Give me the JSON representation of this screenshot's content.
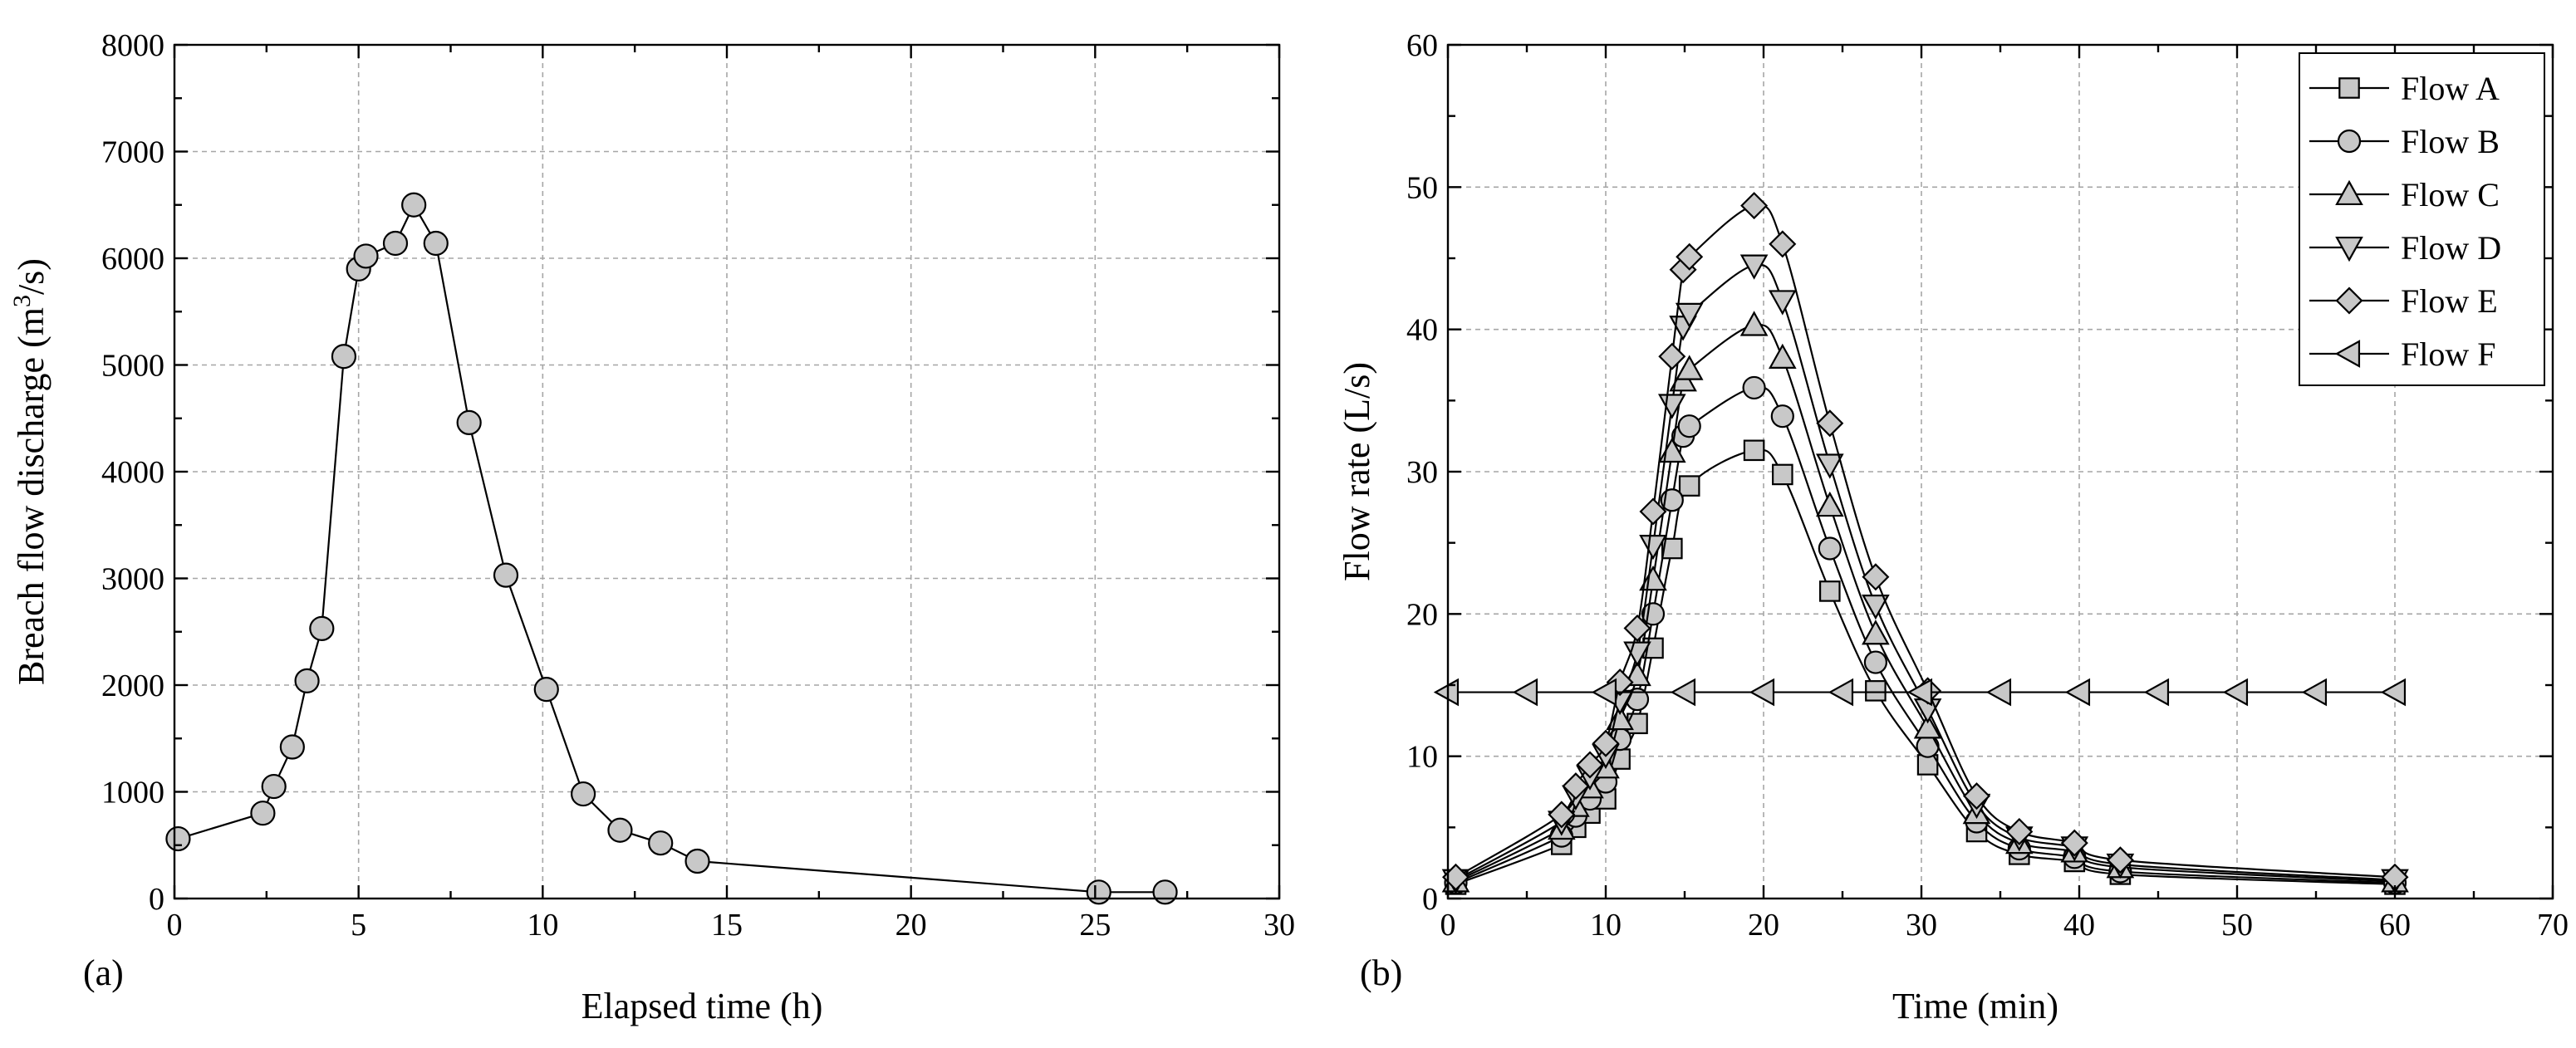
{
  "chart_data": [
    {
      "type": "scatter",
      "panel_label": "(a)",
      "title": "",
      "xlabel": "Elapsed time (h)",
      "ylabel_parts": [
        "Breach flow discharge (m",
        "3",
        "/s)"
      ],
      "xlim": [
        0,
        30
      ],
      "ylim": [
        0,
        8000
      ],
      "xticks": [
        0,
        5,
        10,
        15,
        20,
        25,
        30
      ],
      "xtick_labels": [
        "0",
        "5",
        "10",
        "15",
        "20",
        "25",
        "30"
      ],
      "yticks": [
        0,
        1000,
        2000,
        3000,
        4000,
        5000,
        6000,
        7000,
        8000
      ],
      "ytick_labels": [
        "0",
        "1000",
        "2000",
        "3000",
        "4000",
        "5000",
        "6000",
        "7000",
        "8000"
      ],
      "grid": true,
      "series": [
        {
          "name": "Breach flow discharge",
          "marker": "circle",
          "x": [
            0.1,
            2.4,
            2.7,
            3.2,
            3.6,
            4.0,
            4.6,
            5.0,
            5.2,
            6.0,
            6.5,
            7.1,
            8.0,
            9.0,
            10.1,
            11.1,
            12.1,
            13.2,
            14.2,
            25.1,
            26.9
          ],
          "y": [
            560,
            800,
            1050,
            1420,
            2040,
            2530,
            5080,
            5900,
            6020,
            6140,
            6500,
            6140,
            4460,
            3030,
            1960,
            980,
            640,
            520,
            350,
            60,
            60
          ]
        }
      ]
    },
    {
      "type": "line",
      "panel_label": "(b)",
      "title": "",
      "xlabel": "Time (min)",
      "ylabel": "Flow rate (L/s)",
      "xlim": [
        0,
        70
      ],
      "ylim": [
        0,
        60
      ],
      "xticks": [
        0,
        10,
        20,
        30,
        40,
        50,
        60,
        70
      ],
      "xtick_labels": [
        "0",
        "10",
        "20",
        "30",
        "40",
        "50",
        "60",
        "70"
      ],
      "yticks": [
        0,
        10,
        20,
        30,
        40,
        50,
        60
      ],
      "ytick_labels": [
        "0",
        "10",
        "20",
        "30",
        "40",
        "50",
        "60"
      ],
      "grid": true,
      "legend_position": "top-right",
      "series": [
        {
          "name": "Flow A",
          "marker": "square",
          "peak": 31.5,
          "x": [
            0.5,
            7.2,
            8.1,
            9.0,
            10.0,
            10.9,
            12.0,
            13.0,
            14.2,
            15.3,
            19.4,
            21.2,
            24.2,
            27.1,
            30.4,
            33.5,
            36.2,
            39.7,
            42.6,
            60.0
          ],
          "y": [
            1.0,
            3.8,
            5.0,
            6.0,
            7.0,
            9.8,
            12.3,
            17.6,
            24.6,
            29.0,
            31.5,
            29.8,
            21.6,
            14.6,
            9.4,
            4.7,
            3.1,
            2.6,
            1.7,
            1.0
          ]
        },
        {
          "name": "Flow B",
          "marker": "circle",
          "peak": 35.9,
          "x": [
            0.5,
            7.2,
            8.1,
            9.0,
            10.0,
            10.9,
            12.0,
            13.0,
            14.2,
            14.9,
            15.3,
            19.4,
            21.2,
            24.2,
            27.1,
            30.4,
            33.5,
            36.2,
            39.7,
            42.6,
            60.0
          ],
          "y": [
            1.1,
            4.4,
            5.8,
            7.0,
            8.2,
            11.2,
            14.0,
            20.0,
            28.0,
            32.5,
            33.2,
            35.9,
            33.9,
            24.6,
            16.6,
            10.7,
            5.4,
            3.5,
            2.9,
            1.9,
            1.1
          ]
        },
        {
          "name": "Flow C",
          "marker": "triangle-up",
          "peak": 40.3,
          "x": [
            0.5,
            7.2,
            8.1,
            9.0,
            10.0,
            10.9,
            12.0,
            13.0,
            14.2,
            14.9,
            15.3,
            19.4,
            21.2,
            24.2,
            27.1,
            30.4,
            33.5,
            36.2,
            39.7,
            42.6,
            60.0
          ],
          "y": [
            1.2,
            4.9,
            6.5,
            7.8,
            9.2,
            12.6,
            15.7,
            22.4,
            31.4,
            36.4,
            37.2,
            40.3,
            38.0,
            27.6,
            18.6,
            12.0,
            6.0,
            3.9,
            3.3,
            2.2,
            1.2
          ]
        },
        {
          "name": "Flow D",
          "marker": "triangle-down",
          "peak": 44.5,
          "x": [
            0.5,
            7.2,
            8.1,
            9.0,
            10.0,
            10.9,
            12.0,
            13.0,
            14.2,
            14.9,
            15.3,
            19.4,
            21.2,
            24.2,
            27.1,
            30.4,
            33.5,
            36.2,
            39.7,
            42.6,
            60.0
          ],
          "y": [
            1.3,
            5.4,
            7.2,
            8.6,
            10.1,
            13.9,
            17.3,
            24.8,
            34.7,
            40.2,
            41.1,
            44.5,
            42.0,
            30.5,
            20.6,
            13.3,
            6.6,
            4.3,
            3.6,
            2.4,
            1.3
          ]
        },
        {
          "name": "Flow E",
          "marker": "diamond",
          "peak": 48.7,
          "x": [
            0.5,
            7.2,
            8.1,
            9.0,
            10.0,
            10.9,
            12.0,
            13.0,
            14.2,
            14.9,
            15.3,
            19.4,
            21.2,
            24.2,
            27.1,
            30.4,
            33.5,
            36.2,
            39.7,
            42.6,
            60.0
          ],
          "y": [
            1.5,
            5.9,
            7.9,
            9.4,
            10.9,
            15.2,
            19.0,
            27.2,
            38.1,
            44.2,
            45.1,
            48.7,
            46.0,
            33.4,
            22.6,
            14.6,
            7.2,
            4.7,
            3.9,
            2.7,
            1.5
          ]
        },
        {
          "name": "Flow F",
          "marker": "triangle-left",
          "peak": 14.5,
          "x": [
            0.0,
            5.0,
            10.0,
            15.0,
            20.0,
            25.0,
            30.0,
            35.0,
            40.0,
            45.0,
            50.0,
            55.0,
            60.0
          ],
          "y": [
            14.5,
            14.5,
            14.5,
            14.5,
            14.5,
            14.5,
            14.5,
            14.5,
            14.5,
            14.5,
            14.5,
            14.5,
            14.5
          ]
        }
      ]
    }
  ]
}
